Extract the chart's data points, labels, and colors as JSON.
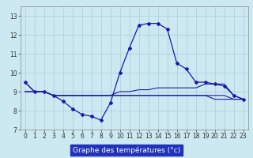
{
  "xlabel": "Graphe des températures (°c)",
  "x": [
    0,
    1,
    2,
    3,
    4,
    5,
    6,
    7,
    8,
    9,
    10,
    11,
    12,
    13,
    14,
    15,
    16,
    17,
    18,
    19,
    20,
    21,
    22,
    23
  ],
  "main_line": [
    9.5,
    9.0,
    9.0,
    8.8,
    8.5,
    8.1,
    7.8,
    7.7,
    7.5,
    8.4,
    10.0,
    11.3,
    12.5,
    12.6,
    12.6,
    12.3,
    10.5,
    10.2,
    9.5,
    9.5,
    9.4,
    9.3,
    8.8,
    8.6
  ],
  "line2": [
    9.0,
    9.0,
    9.0,
    8.8,
    8.8,
    8.8,
    8.8,
    8.8,
    8.8,
    8.8,
    8.8,
    8.8,
    8.8,
    8.8,
    8.8,
    8.8,
    8.8,
    8.8,
    8.8,
    8.8,
    8.8,
    8.8,
    8.6,
    8.6
  ],
  "line3": [
    9.0,
    9.0,
    9.0,
    8.8,
    8.8,
    8.8,
    8.8,
    8.8,
    8.8,
    8.8,
    8.8,
    8.8,
    8.8,
    8.8,
    8.8,
    8.8,
    8.8,
    8.8,
    8.8,
    8.8,
    8.6,
    8.6,
    8.6,
    8.6
  ],
  "line4": [
    9.5,
    9.0,
    9.0,
    8.8,
    8.8,
    8.8,
    8.8,
    8.8,
    8.8,
    8.8,
    9.0,
    9.0,
    9.1,
    9.1,
    9.2,
    9.2,
    9.2,
    9.2,
    9.2,
    9.4,
    9.4,
    9.4,
    8.8,
    8.6
  ],
  "line_color": "#1a1aaa",
  "bg_color": "#cce8f0",
  "grid_color": "#aaccdd",
  "xlabel_bg": "#2233bb",
  "xlabel_fg": "#ffffff",
  "ylim": [
    7,
    13.5
  ],
  "xlim": [
    -0.5,
    23.5
  ],
  "yticks": [
    7,
    8,
    9,
    10,
    11,
    12,
    13
  ],
  "xticks": [
    0,
    1,
    2,
    3,
    4,
    5,
    6,
    7,
    8,
    9,
    10,
    11,
    12,
    13,
    14,
    15,
    16,
    17,
    18,
    19,
    20,
    21,
    22,
    23
  ],
  "tick_fontsize": 5.5,
  "xlabel_fontsize": 6.5
}
